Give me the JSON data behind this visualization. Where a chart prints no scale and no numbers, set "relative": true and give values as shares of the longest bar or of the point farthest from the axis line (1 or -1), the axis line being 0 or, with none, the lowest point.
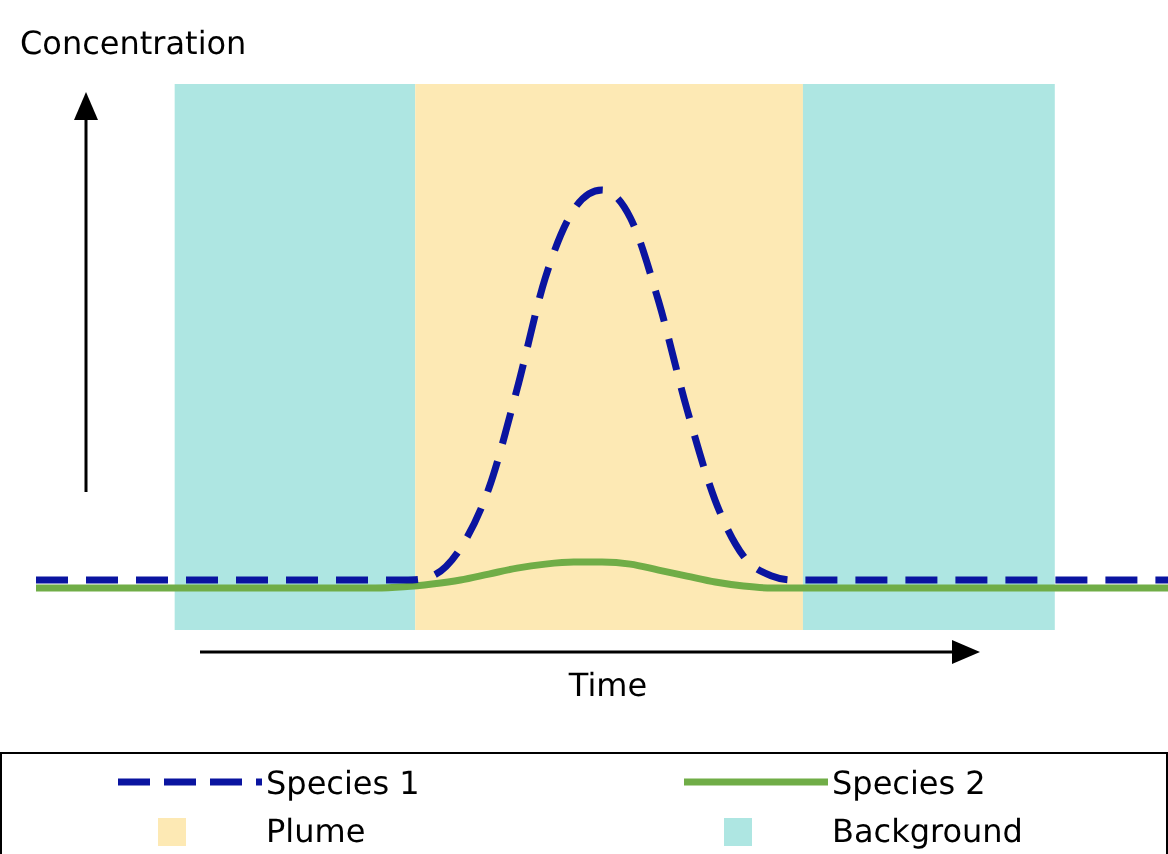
{
  "chart_data": {
    "type": "line",
    "xlabel": "Time",
    "ylabel": "Concentration",
    "relative": true,
    "grid": false,
    "legend": "bottom",
    "marker": "none",
    "categories": [
      null,
      null,
      null,
      null,
      null,
      null,
      null,
      null,
      null,
      null,
      null,
      null,
      null,
      null,
      null,
      null,
      null,
      null,
      null,
      null,
      null,
      null,
      null,
      null,
      null,
      null,
      null,
      null,
      null,
      null,
      null,
      null,
      null,
      null,
      null,
      null,
      null,
      null,
      null,
      null,
      null
    ],
    "series": [
      {
        "name": "Species 1",
        "color": "#0a14a0",
        "line_style": "dashed",
        "values": [
          0.02,
          0.02,
          0.02,
          0.02,
          0.02,
          0.02,
          0.02,
          0.02,
          0.02,
          0.02,
          0.02,
          0.02,
          0.02,
          0.02,
          0.03,
          0.1,
          0.25,
          0.5,
          0.78,
          0.95,
          1,
          0.93,
          0.72,
          0.45,
          0.22,
          0.08,
          0.03,
          0.02,
          0.02,
          0.02,
          0.02,
          0.02,
          0.02,
          0.02,
          0.02,
          0.02,
          0.02,
          0.02,
          0.02,
          0.02,
          0.02
        ]
      },
      {
        "name": "Species 2",
        "color": "#70ad47",
        "line_style": "solid",
        "values": [
          0,
          0,
          0,
          0,
          0,
          0,
          0,
          0,
          0,
          0,
          0,
          0,
          0,
          0.003,
          0.01,
          0.02,
          0.035,
          0.05,
          0.06,
          0.065,
          0.065,
          0.06,
          0.045,
          0.03,
          0.015,
          0.005,
          0,
          0,
          0,
          0,
          0,
          0,
          0,
          0,
          0,
          0,
          0,
          0,
          0,
          0,
          0
        ]
      }
    ],
    "annotations": [
      "Plume",
      "Background"
    ]
  }
}
